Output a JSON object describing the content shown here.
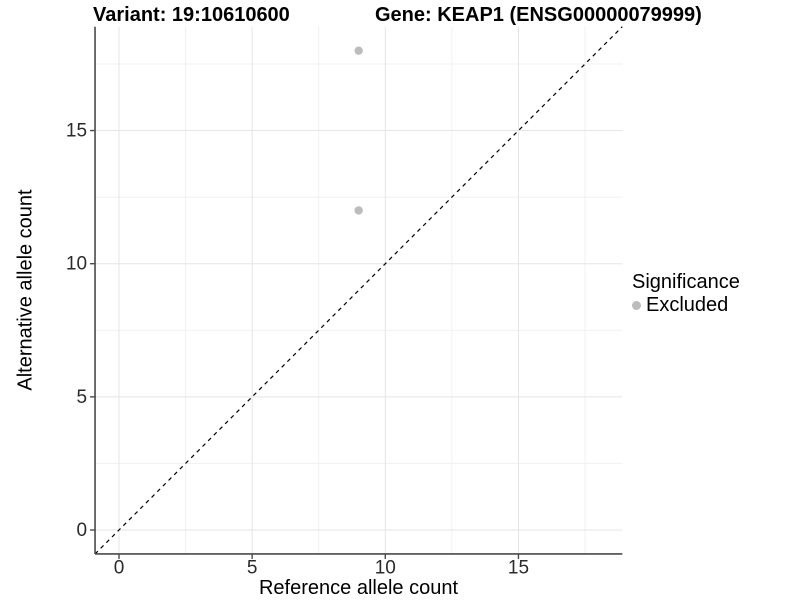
{
  "chart_data": {
    "type": "scatter",
    "title_left": "Variant: 19:10610600",
    "title_right": "Gene: KEAP1 (ENSG00000079999)",
    "xlabel": "Reference allele count",
    "ylabel": "Alternative allele count",
    "xlim": [
      -0.9,
      18.9
    ],
    "ylim": [
      -0.9,
      18.9
    ],
    "x_ticks": [
      0,
      5,
      10,
      15
    ],
    "y_ticks": [
      0,
      5,
      10,
      15
    ],
    "x_minor_ticks": [
      2.5,
      7.5,
      12.5,
      17.5
    ],
    "y_minor_ticks": [
      2.5,
      7.5,
      12.5,
      17.5
    ],
    "grid": "major+minor",
    "reference_line": {
      "type": "identity-y-equals-x",
      "style": "dashed",
      "color": "#000000"
    },
    "series": [
      {
        "name": "Excluded",
        "color": "#bcbcbc",
        "points": [
          [
            9,
            18
          ],
          [
            9,
            12
          ]
        ]
      }
    ],
    "legend": {
      "title": "Significance",
      "position": "right",
      "items": [
        {
          "label": "Excluded",
          "color": "#bcbcbc"
        }
      ]
    }
  },
  "colors": {
    "background": "#ffffff",
    "grid_major": "#e5e5e5",
    "grid_minor": "#f0f0f0",
    "axis_line": "#4a4a4a",
    "tick_label": "#2b2b2b",
    "point": "#bcbcbc",
    "dashed_line": "#000000"
  }
}
